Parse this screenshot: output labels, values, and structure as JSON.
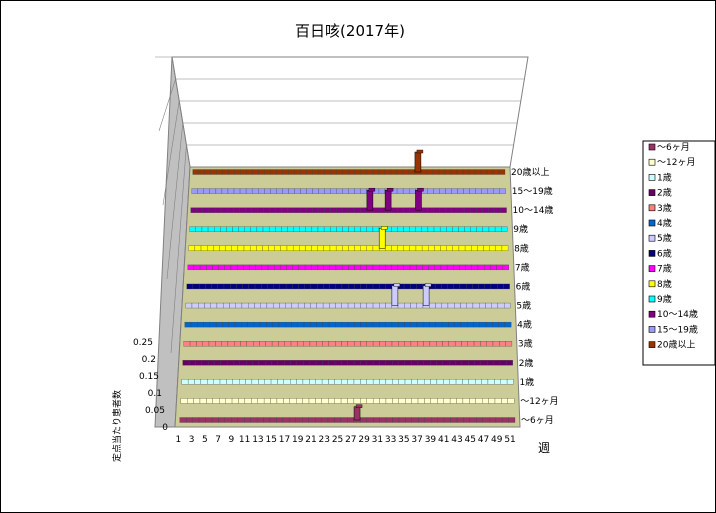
{
  "chart_data": {
    "type": "bar",
    "title": "百日咳(2017年)",
    "xlabel": "週",
    "ylabel": "定点当たり患者数",
    "ylim": [
      0,
      0.25
    ],
    "yticks": [
      "0",
      "0.05",
      "0.1",
      "0.15",
      "0.2",
      "0.25"
    ],
    "xticks": [
      "1",
      "3",
      "5",
      "7",
      "9",
      "11",
      "13",
      "15",
      "17",
      "19",
      "21",
      "23",
      "25",
      "27",
      "29",
      "31",
      "33",
      "35",
      "37",
      "39",
      "41",
      "43",
      "45",
      "47",
      "49",
      "51"
    ],
    "weeks": 52,
    "legend_position": "right",
    "series": [
      {
        "name": "～6ヶ月",
        "color": "#993366",
        "points": [
          [
            28,
            0.02
          ]
        ]
      },
      {
        "name": "～12ヶ月",
        "color": "#ffffcc",
        "points": []
      },
      {
        "name": "1歳",
        "color": "#ccffff",
        "points": []
      },
      {
        "name": "2歳",
        "color": "#660066",
        "points": []
      },
      {
        "name": "3歳",
        "color": "#ff8080",
        "points": []
      },
      {
        "name": "4歳",
        "color": "#0066cc",
        "points": []
      },
      {
        "name": "5歳",
        "color": "#ccccff",
        "points": [
          [
            34,
            0.03
          ],
          [
            39,
            0.03
          ]
        ]
      },
      {
        "name": "6歳",
        "color": "#000080",
        "points": []
      },
      {
        "name": "7歳",
        "color": "#ff00ff",
        "points": []
      },
      {
        "name": "8歳",
        "color": "#ffff00",
        "points": [
          [
            32,
            0.03
          ]
        ]
      },
      {
        "name": "9歳",
        "color": "#00ffff",
        "points": []
      },
      {
        "name": "10～14歳",
        "color": "#800080",
        "points": [
          [
            30,
            0.03
          ],
          [
            33,
            0.03
          ],
          [
            38,
            0.03
          ]
        ]
      },
      {
        "name": "15～19歳",
        "color": "#9999ff",
        "points": []
      },
      {
        "name": "20歳以上",
        "color": "#993300",
        "points": [
          [
            38,
            0.03
          ]
        ]
      }
    ]
  }
}
